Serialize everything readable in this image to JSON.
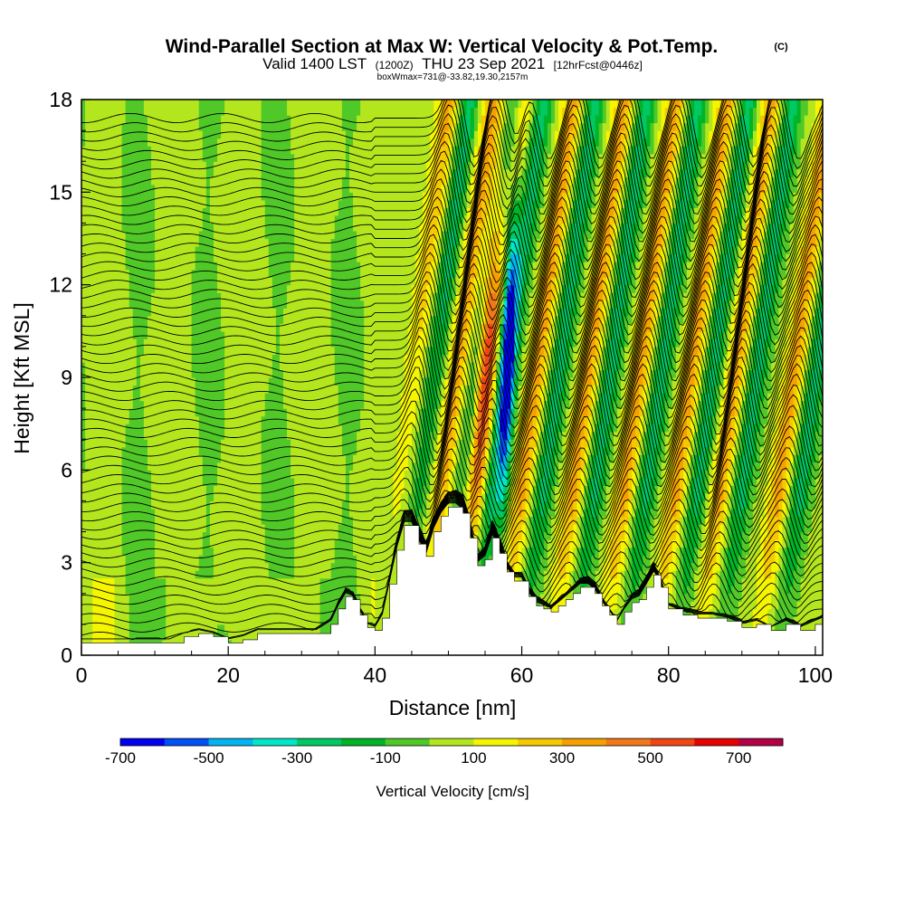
{
  "chart_data": {
    "type": "contour-cross-section",
    "title": "Wind-Parallel Section at Max W: Vertical Velocity & Pot.Temp.",
    "title_mark": "(C)",
    "subtitle_prefix": "Valid 1400 LST",
    "subtitle_utc": "(1200Z)",
    "subtitle_date": "THU 23 Sep 2021",
    "subtitle_forecast": "[12hrFcst@0446z]",
    "box_info": "boxWmax=731@-33.82,19.30,2157m",
    "xlabel": "Distance [nm]",
    "ylabel": "Height [Kft MSL]",
    "xlim": [
      0,
      101
    ],
    "ylim": [
      0,
      18
    ],
    "x_ticks": [
      0,
      20,
      40,
      60,
      80,
      100
    ],
    "y_ticks": [
      0,
      3,
      6,
      9,
      12,
      15,
      18
    ],
    "colorbar": {
      "label": "Vertical Velocity [cm/s]",
      "levels": [
        -700,
        -600,
        -500,
        -400,
        -300,
        -200,
        -100,
        0,
        100,
        200,
        300,
        400,
        500,
        600,
        700,
        800
      ],
      "tick_labels": [
        "-700",
        "-500",
        "-300",
        "-100",
        "100",
        "300",
        "500",
        "700"
      ],
      "colors": [
        "#0000f0",
        "#0050f5",
        "#00b4f0",
        "#00e6c8",
        "#00c864",
        "#00b428",
        "#50c828",
        "#b4e61e",
        "#f5f500",
        "#f5c800",
        "#f5a000",
        "#f07818",
        "#f04614",
        "#e60000",
        "#b40046"
      ]
    },
    "features": {
      "updraft_max_cm_s": 731,
      "updraft_axis_x_nm": 55,
      "downdraft_min_cm_s": -700,
      "downdraft_axis_x_nm": 58,
      "wave_crest_x_nm": [
        45,
        51,
        55,
        62,
        69,
        76,
        83,
        89,
        97
      ],
      "terrain_max_kft": 4.8
    },
    "terrain": {
      "x": [
        0,
        2,
        4,
        6,
        8,
        10,
        12,
        14,
        16,
        18,
        20,
        22,
        24,
        26,
        28,
        30,
        32,
        34,
        35,
        36,
        37,
        38,
        39,
        40,
        41,
        42,
        43,
        44,
        45,
        46,
        47,
        48,
        49,
        50,
        51,
        52,
        53,
        54,
        55,
        56,
        57,
        58,
        59,
        60,
        61,
        62,
        63,
        64,
        65,
        66,
        67,
        68,
        69,
        70,
        71,
        72,
        73,
        74,
        75,
        76,
        77,
        78,
        79,
        80,
        82,
        84,
        86,
        88,
        90,
        92,
        94,
        96,
        98,
        100,
        101
      ],
      "y": [
        0.4,
        0.4,
        0.4,
        0.4,
        0.4,
        0.4,
        0.4,
        0.6,
        0.7,
        0.6,
        0.4,
        0.5,
        0.7,
        0.7,
        0.7,
        0.7,
        0.7,
        1.0,
        1.5,
        1.9,
        1.8,
        1.3,
        0.9,
        0.8,
        1.2,
        2.3,
        3.4,
        4.2,
        4.2,
        3.6,
        3.2,
        4.0,
        4.5,
        4.8,
        4.8,
        4.6,
        3.8,
        2.9,
        3.1,
        3.8,
        3.3,
        2.7,
        2.4,
        2.4,
        1.9,
        1.6,
        1.5,
        1.4,
        1.6,
        1.8,
        2.0,
        2.2,
        2.2,
        2.0,
        1.6,
        1.3,
        1.0,
        1.4,
        1.7,
        1.8,
        2.2,
        2.6,
        2.2,
        1.5,
        1.3,
        1.2,
        1.2,
        1.1,
        0.9,
        1.0,
        0.8,
        1.0,
        0.8,
        1.0,
        1.1
      ]
    }
  }
}
